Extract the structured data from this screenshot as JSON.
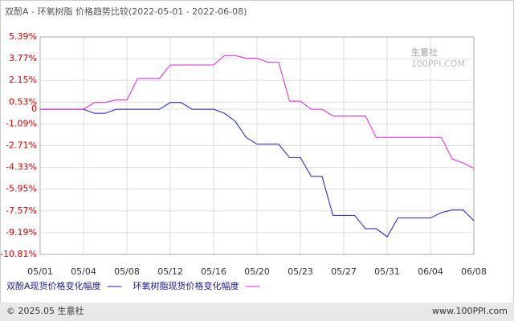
{
  "chart_data": {
    "type": "line",
    "title": "双酚A - 环氧树脂 价格趋势比较(2022-05-01 - 2022-06-08)",
    "categories": [
      "05/01",
      null,
      null,
      null,
      "05/04",
      null,
      null,
      null,
      "05/08",
      null,
      null,
      null,
      "05/12",
      null,
      null,
      null,
      "05/16",
      null,
      null,
      null,
      "05/20",
      null,
      null,
      null,
      "05/23",
      null,
      null,
      null,
      "05/27",
      null,
      null,
      null,
      "05/31",
      null,
      null,
      null,
      "06/04",
      null,
      null,
      null,
      "06/08"
    ],
    "series": [
      {
        "name": "双酚A现货价格变化幅度",
        "color": "#1a1acc",
        "values": [
          0,
          0,
          0,
          0,
          0,
          -0.3,
          -0.3,
          0,
          0,
          0,
          0,
          0,
          0.5,
          0.5,
          0,
          0,
          0,
          -0.3,
          -0.9,
          -2.1,
          -2.6,
          -2.6,
          -2.6,
          -3.6,
          -3.6,
          -5.0,
          -5.0,
          -7.9,
          -7.9,
          -7.9,
          -8.9,
          -8.9,
          -9.5,
          -8.1,
          -8.1,
          -8.1,
          -8.1,
          -7.7,
          -7.5,
          -7.5,
          -8.3
        ]
      },
      {
        "name": "环氧树脂现货价格变化幅度",
        "color": "#e020e0",
        "values": [
          0,
          0,
          0,
          0,
          0,
          0.5,
          0.5,
          0.7,
          0.7,
          2.3,
          2.3,
          2.3,
          3.3,
          3.3,
          3.3,
          3.3,
          3.3,
          4.0,
          4.0,
          3.8,
          3.8,
          3.5,
          3.5,
          0.6,
          0.6,
          0,
          0,
          -0.5,
          -0.5,
          -0.5,
          -0.5,
          -2.1,
          -2.1,
          -2.1,
          -2.1,
          -2.1,
          -2.1,
          -2.1,
          -3.7,
          -4.0,
          -4.4
        ]
      }
    ],
    "ylim": [
      -10.81,
      5.39
    ],
    "yticks": [
      {
        "value": 5.39,
        "label": "5.39%"
      },
      {
        "value": 3.77,
        "label": "3.77%"
      },
      {
        "value": 2.15,
        "label": "2.15%"
      },
      {
        "value": 0.53,
        "label": "0.53%"
      },
      0,
      {
        "value": -1.09,
        "label": "-1.09%"
      },
      {
        "value": -2.71,
        "label": "-2.71%"
      },
      {
        "value": -4.33,
        "label": "-4.33%"
      },
      {
        "value": -5.95,
        "label": "-5.95%"
      },
      {
        "value": -7.57,
        "label": "-7.57%"
      },
      {
        "value": -9.19,
        "label": "-9.19%"
      },
      {
        "value": -10.81,
        "label": "-10.81%"
      }
    ],
    "grid": true,
    "watermark": "生意社",
    "watermark_sub": "100PPI.COM"
  },
  "footer": {
    "left": "© 2025.05 生意社",
    "right": "www.100PPI.com"
  }
}
